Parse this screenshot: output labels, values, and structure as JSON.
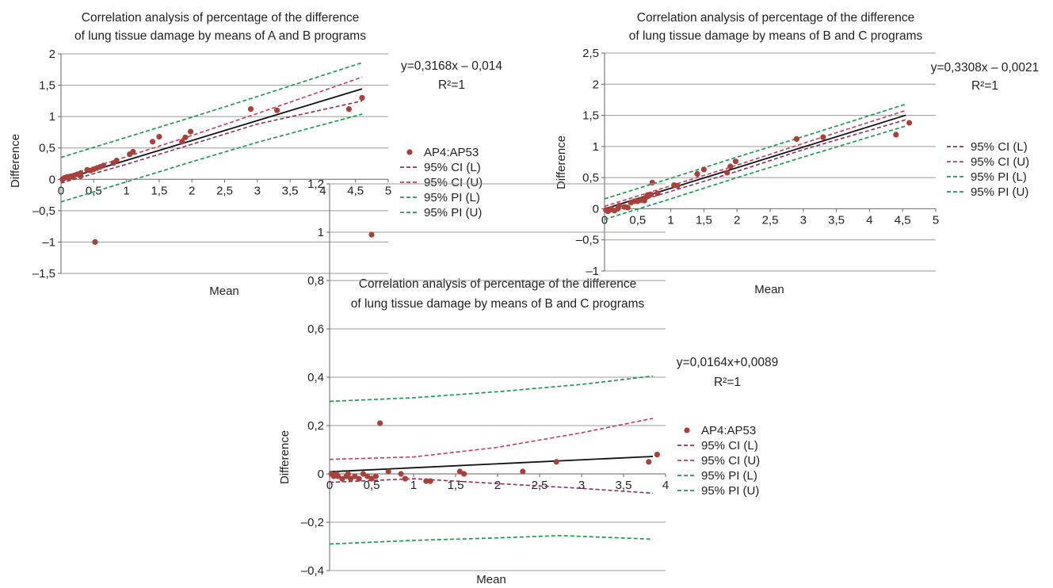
{
  "colors": {
    "points": "#a8403b",
    "ci_l": "#8c2f5e",
    "ci_u": "#c93a5a",
    "pi": "#1f9a4d",
    "fit": "#111111",
    "grid": "#9a9a9a",
    "axis": "#666666"
  },
  "chart_data": [
    {
      "type": "scatter",
      "title_lines": [
        "Correlation analysis of percentage of the difference",
        "of lung tissue damage by means of A and B programs"
      ],
      "xlabel": "Mean",
      "ylabel": "Difference",
      "xlim": [
        0,
        5
      ],
      "ylim": [
        -1.5,
        2
      ],
      "xticks": [
        0,
        0.5,
        1,
        1.5,
        2,
        2.5,
        3,
        3.5,
        4,
        4.5,
        5
      ],
      "yticks": [
        -1.5,
        -1,
        -0.5,
        0,
        0.5,
        1,
        1.5,
        2
      ],
      "xtick_labels": [
        "0",
        "0,5",
        "1",
        "1,5",
        "2",
        "2,5",
        "3",
        "3,5",
        "4",
        "4,5",
        "5"
      ],
      "ytick_labels": [
        "–1,5",
        "–1",
        "–0,5",
        "0",
        "0,5",
        "1",
        "1,5",
        "2"
      ],
      "equation": "y=0,3168x – 0,014",
      "r2": "R²=1",
      "legend": [
        "AP4:AP53",
        "95% CI (L)",
        "95% CI (U)",
        "95% PI (L)",
        "95% PI (U)"
      ],
      "legend_types": [
        "point",
        "ci_l",
        "ci_u",
        "pi",
        "pi"
      ],
      "points": [
        [
          0.02,
          0.0
        ],
        [
          0.05,
          0.02
        ],
        [
          0.08,
          0.03
        ],
        [
          0.1,
          0.04
        ],
        [
          0.12,
          0.02
        ],
        [
          0.15,
          0.05
        ],
        [
          0.18,
          0.04
        ],
        [
          0.2,
          0.06
        ],
        [
          0.25,
          0.08
        ],
        [
          0.3,
          0.1
        ],
        [
          0.3,
          0.05
        ],
        [
          0.4,
          0.15
        ],
        [
          0.45,
          0.14
        ],
        [
          0.5,
          0.16
        ],
        [
          0.55,
          0.18
        ],
        [
          0.6,
          0.2
        ],
        [
          0.65,
          0.22
        ],
        [
          0.8,
          0.26
        ],
        [
          0.85,
          0.3
        ],
        [
          1.05,
          0.4
        ],
        [
          1.1,
          0.44
        ],
        [
          1.4,
          0.6
        ],
        [
          1.5,
          0.68
        ],
        [
          1.85,
          0.6
        ],
        [
          1.9,
          0.67
        ],
        [
          1.98,
          0.76
        ],
        [
          2.9,
          1.12
        ],
        [
          3.3,
          1.1
        ],
        [
          4.4,
          1.12
        ],
        [
          4.6,
          1.3
        ],
        [
          0.52,
          -1.0
        ]
      ],
      "fit": [
        [
          0,
          -0.014
        ],
        [
          4.6,
          1.443
        ]
      ],
      "ci_l": [
        [
          0,
          -0.06
        ],
        [
          1,
          0.24
        ],
        [
          2,
          0.56
        ],
        [
          3,
          0.88
        ],
        [
          4.6,
          1.25
        ]
      ],
      "ci_u": [
        [
          0,
          0.03
        ],
        [
          1,
          0.36
        ],
        [
          2,
          0.7
        ],
        [
          3,
          1.05
        ],
        [
          4.6,
          1.63
        ]
      ],
      "pi_l": [
        [
          0,
          -0.36
        ],
        [
          1,
          -0.04
        ],
        [
          2,
          0.28
        ],
        [
          3,
          0.59
        ],
        [
          4.6,
          1.04
        ]
      ],
      "pi_u": [
        [
          0,
          0.35
        ],
        [
          1,
          0.67
        ],
        [
          2,
          0.99
        ],
        [
          3,
          1.32
        ],
        [
          4.6,
          1.86
        ]
      ]
    },
    {
      "type": "scatter",
      "title_lines": [
        "Correlation analysis of percentage of the difference",
        "of lung tissue damage by means of B and C programs"
      ],
      "xlabel": "Mean",
      "ylabel": "Difference",
      "xlim": [
        0,
        5
      ],
      "ylim": [
        -1,
        2.5
      ],
      "xticks": [
        0,
        0.5,
        1,
        1.5,
        2,
        2.5,
        3,
        3.5,
        4,
        4.5,
        5
      ],
      "yticks": [
        -1,
        -0.5,
        0,
        0.5,
        1,
        1.5,
        2,
        2.5
      ],
      "xtick_labels": [
        "0",
        "0,5",
        "1",
        "1,5",
        "2",
        "2,5",
        "3",
        "3,5",
        "4",
        "4,5",
        "5"
      ],
      "ytick_labels": [
        "–1",
        "–0,5",
        "0",
        "0,5",
        "1",
        "1,5",
        "2",
        "2,5"
      ],
      "equation": "y=0,3308x – 0,0021",
      "r2": "R²=1",
      "legend": [
        "95% CI (L)",
        "95% CI (U)",
        "95% PI (L)",
        "95% PI (U)"
      ],
      "legend_types": [
        "ci_l",
        "ci_u",
        "pi",
        "pi"
      ],
      "points": [
        [
          0.02,
          -0.02
        ],
        [
          0.05,
          -0.04
        ],
        [
          0.08,
          -0.02
        ],
        [
          0.1,
          0.0
        ],
        [
          0.15,
          -0.03
        ],
        [
          0.2,
          0.0
        ],
        [
          0.22,
          0.05
        ],
        [
          0.3,
          0.03
        ],
        [
          0.35,
          0.02
        ],
        [
          0.4,
          0.1
        ],
        [
          0.45,
          0.12
        ],
        [
          0.5,
          0.12
        ],
        [
          0.55,
          0.14
        ],
        [
          0.6,
          0.13
        ],
        [
          0.62,
          0.18
        ],
        [
          0.65,
          0.22
        ],
        [
          0.7,
          0.23
        ],
        [
          0.72,
          0.42
        ],
        [
          0.8,
          0.25
        ],
        [
          1.05,
          0.38
        ],
        [
          1.1,
          0.37
        ],
        [
          1.4,
          0.56
        ],
        [
          1.5,
          0.63
        ],
        [
          1.85,
          0.58
        ],
        [
          1.9,
          0.68
        ],
        [
          1.98,
          0.76
        ],
        [
          2.9,
          1.12
        ],
        [
          3.3,
          1.15
        ],
        [
          4.4,
          1.19
        ],
        [
          4.6,
          1.38
        ]
      ],
      "fit": [
        [
          0,
          -0.002
        ],
        [
          4.55,
          1.503
        ]
      ],
      "ci_l": [
        [
          0,
          -0.05
        ],
        [
          1,
          0.28
        ],
        [
          2,
          0.6
        ],
        [
          3,
          0.95
        ],
        [
          4.55,
          1.43
        ]
      ],
      "ci_u": [
        [
          0,
          0.04
        ],
        [
          1,
          0.37
        ],
        [
          2,
          0.7
        ],
        [
          3,
          1.05
        ],
        [
          4.55,
          1.58
        ]
      ],
      "pi_l": [
        [
          0,
          -0.17
        ],
        [
          1,
          0.16
        ],
        [
          2,
          0.5
        ],
        [
          3,
          0.83
        ],
        [
          4.55,
          1.33
        ]
      ],
      "pi_u": [
        [
          0,
          0.16
        ],
        [
          1,
          0.49
        ],
        [
          2,
          0.83
        ],
        [
          3,
          1.16
        ],
        [
          4.55,
          1.68
        ]
      ]
    },
    {
      "type": "scatter",
      "title_lines": [
        "Correlation analysis of percentage of the difference",
        "of lung tissue damage by means of B and C programs"
      ],
      "xlabel": "Mean",
      "ylabel": "Difference",
      "xlim": [
        0,
        4
      ],
      "ylim": [
        -0.4,
        1.2
      ],
      "xticks": [
        0,
        0.5,
        1,
        1.5,
        2,
        2.5,
        3,
        3.5,
        4
      ],
      "yticks": [
        -0.4,
        -0.2,
        0,
        0.2,
        0.4,
        0.6,
        0.8,
        1,
        1.2
      ],
      "xtick_labels": [
        "0",
        "0,5",
        "1",
        "1,5",
        "2",
        "2,5",
        "3",
        "3,5",
        "4"
      ],
      "ytick_labels": [
        "–0,4",
        "–0,2",
        "0",
        "0,2",
        "0,4",
        "0,6",
        "0,8",
        "1",
        "1,2"
      ],
      "equation": "y=0,0164x+0,0089",
      "r2": "R²=1",
      "legend": [
        "AP4:AP53",
        "95% CI (L)",
        "95% CI (U)",
        "95% PI (L)",
        "95% PI (U)"
      ],
      "legend_types": [
        "point",
        "ci_l",
        "ci_u",
        "pi",
        "pi"
      ],
      "points": [
        [
          0.02,
          0.0
        ],
        [
          0.05,
          -0.01
        ],
        [
          0.08,
          0.0
        ],
        [
          0.1,
          -0.01
        ],
        [
          0.15,
          -0.02
        ],
        [
          0.2,
          -0.01
        ],
        [
          0.22,
          0.0
        ],
        [
          0.25,
          -0.02
        ],
        [
          0.3,
          -0.01
        ],
        [
          0.35,
          -0.02
        ],
        [
          0.4,
          0.0
        ],
        [
          0.45,
          -0.01
        ],
        [
          0.5,
          -0.02
        ],
        [
          0.5,
          0.99
        ],
        [
          0.55,
          -0.01
        ],
        [
          0.6,
          0.21
        ],
        [
          0.7,
          0.01
        ],
        [
          0.85,
          0.0
        ],
        [
          0.9,
          -0.02
        ],
        [
          1.15,
          -0.03
        ],
        [
          1.2,
          -0.03
        ],
        [
          1.55,
          0.01
        ],
        [
          1.6,
          0.0
        ],
        [
          2.3,
          0.01
        ],
        [
          2.7,
          0.05
        ],
        [
          3.8,
          0.05
        ],
        [
          3.9,
          0.08
        ]
      ],
      "fit": [
        [
          0,
          0.009
        ],
        [
          3.85,
          0.072
        ]
      ],
      "ci_l": [
        [
          0,
          -0.035
        ],
        [
          1,
          -0.02
        ],
        [
          2,
          -0.04
        ],
        [
          3,
          -0.06
        ],
        [
          3.85,
          -0.08
        ]
      ],
      "ci_u": [
        [
          0,
          0.06
        ],
        [
          1,
          0.07
        ],
        [
          2,
          0.11
        ],
        [
          3,
          0.17
        ],
        [
          3.85,
          0.23
        ]
      ],
      "pi_l": [
        [
          0,
          -0.29
        ],
        [
          1,
          -0.275
        ],
        [
          2,
          -0.265
        ],
        [
          2.75,
          -0.255
        ],
        [
          3.85,
          -0.27
        ]
      ],
      "pi_u": [
        [
          0,
          0.3
        ],
        [
          1,
          0.315
        ],
        [
          2,
          0.34
        ],
        [
          3,
          0.37
        ],
        [
          3.85,
          0.405
        ]
      ]
    }
  ]
}
